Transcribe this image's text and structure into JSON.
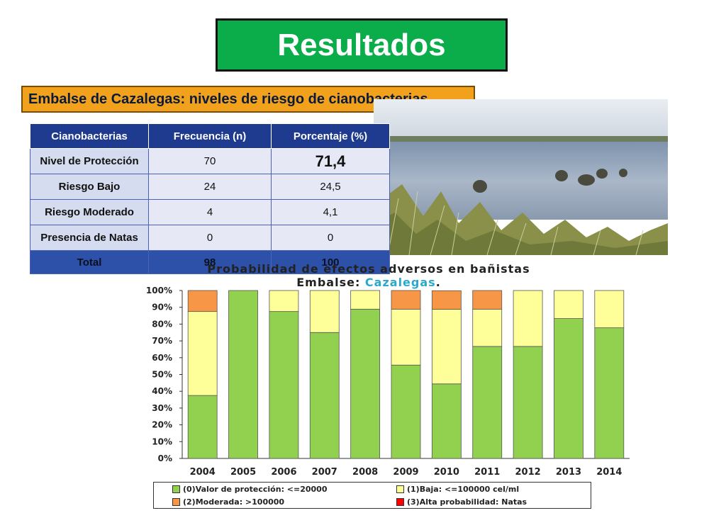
{
  "header": {
    "title": "Resultados"
  },
  "subtitle": "Embalse de Cazalegas: niveles de riesgo de cianobacterias",
  "table": {
    "headers": [
      "Cianobacterias",
      "Frecuencia (n)",
      "Porcentaje (%)"
    ],
    "rows": [
      {
        "label": "Nivel de Protección",
        "n": "70",
        "pct": "71,4"
      },
      {
        "label": "Riesgo Bajo",
        "n": "24",
        "pct": "24,5"
      },
      {
        "label": "Riesgo Moderado",
        "n": "4",
        "pct": "4,1"
      },
      {
        "label": "Presencia de Natas",
        "n": "0",
        "pct": "0"
      }
    ],
    "total": {
      "label": "Total",
      "n": "98",
      "pct": "100"
    }
  },
  "chart_data": {
    "type": "bar",
    "stacked": true,
    "title_line1": "Probabilidad de efectos adversos en bañistas",
    "title_line2_prefix": "Embalse: ",
    "title_line2_highlight": "Cazalegas",
    "title_line2_suffix": ".",
    "categories": [
      "2004",
      "2005",
      "2006",
      "2007",
      "2008",
      "2009",
      "2010",
      "2011",
      "2012",
      "2013",
      "2014"
    ],
    "series": [
      {
        "name": "(0)Valor de protección: <=20000",
        "color": "#92d050",
        "values": [
          37.5,
          100,
          87.5,
          75,
          88.9,
          55.6,
          44.4,
          66.7,
          66.7,
          83.3,
          77.8
        ]
      },
      {
        "name": "(1)Baja: <=100000 cel/ml",
        "color": "#ffff99",
        "values": [
          50,
          0,
          12.5,
          25,
          11.1,
          33.3,
          44.4,
          22.2,
          33.3,
          16.7,
          22.2
        ]
      },
      {
        "name": "(2)Moderada: >100000",
        "color": "#f79646",
        "values": [
          12.5,
          0,
          0,
          0,
          0,
          11.1,
          11.1,
          11.1,
          0,
          0,
          0
        ]
      },
      {
        "name": "(3)Alta probabilidad: Natas",
        "color": "#ff0000",
        "values": [
          0,
          0,
          0,
          0,
          0,
          0,
          0,
          0,
          0,
          0,
          0
        ]
      }
    ],
    "yticks": [
      "0%",
      "10%",
      "20%",
      "30%",
      "40%",
      "50%",
      "60%",
      "70%",
      "80%",
      "90%",
      "100%"
    ],
    "ylim": [
      0,
      100
    ],
    "legend_position": "bottom",
    "grid": false
  }
}
